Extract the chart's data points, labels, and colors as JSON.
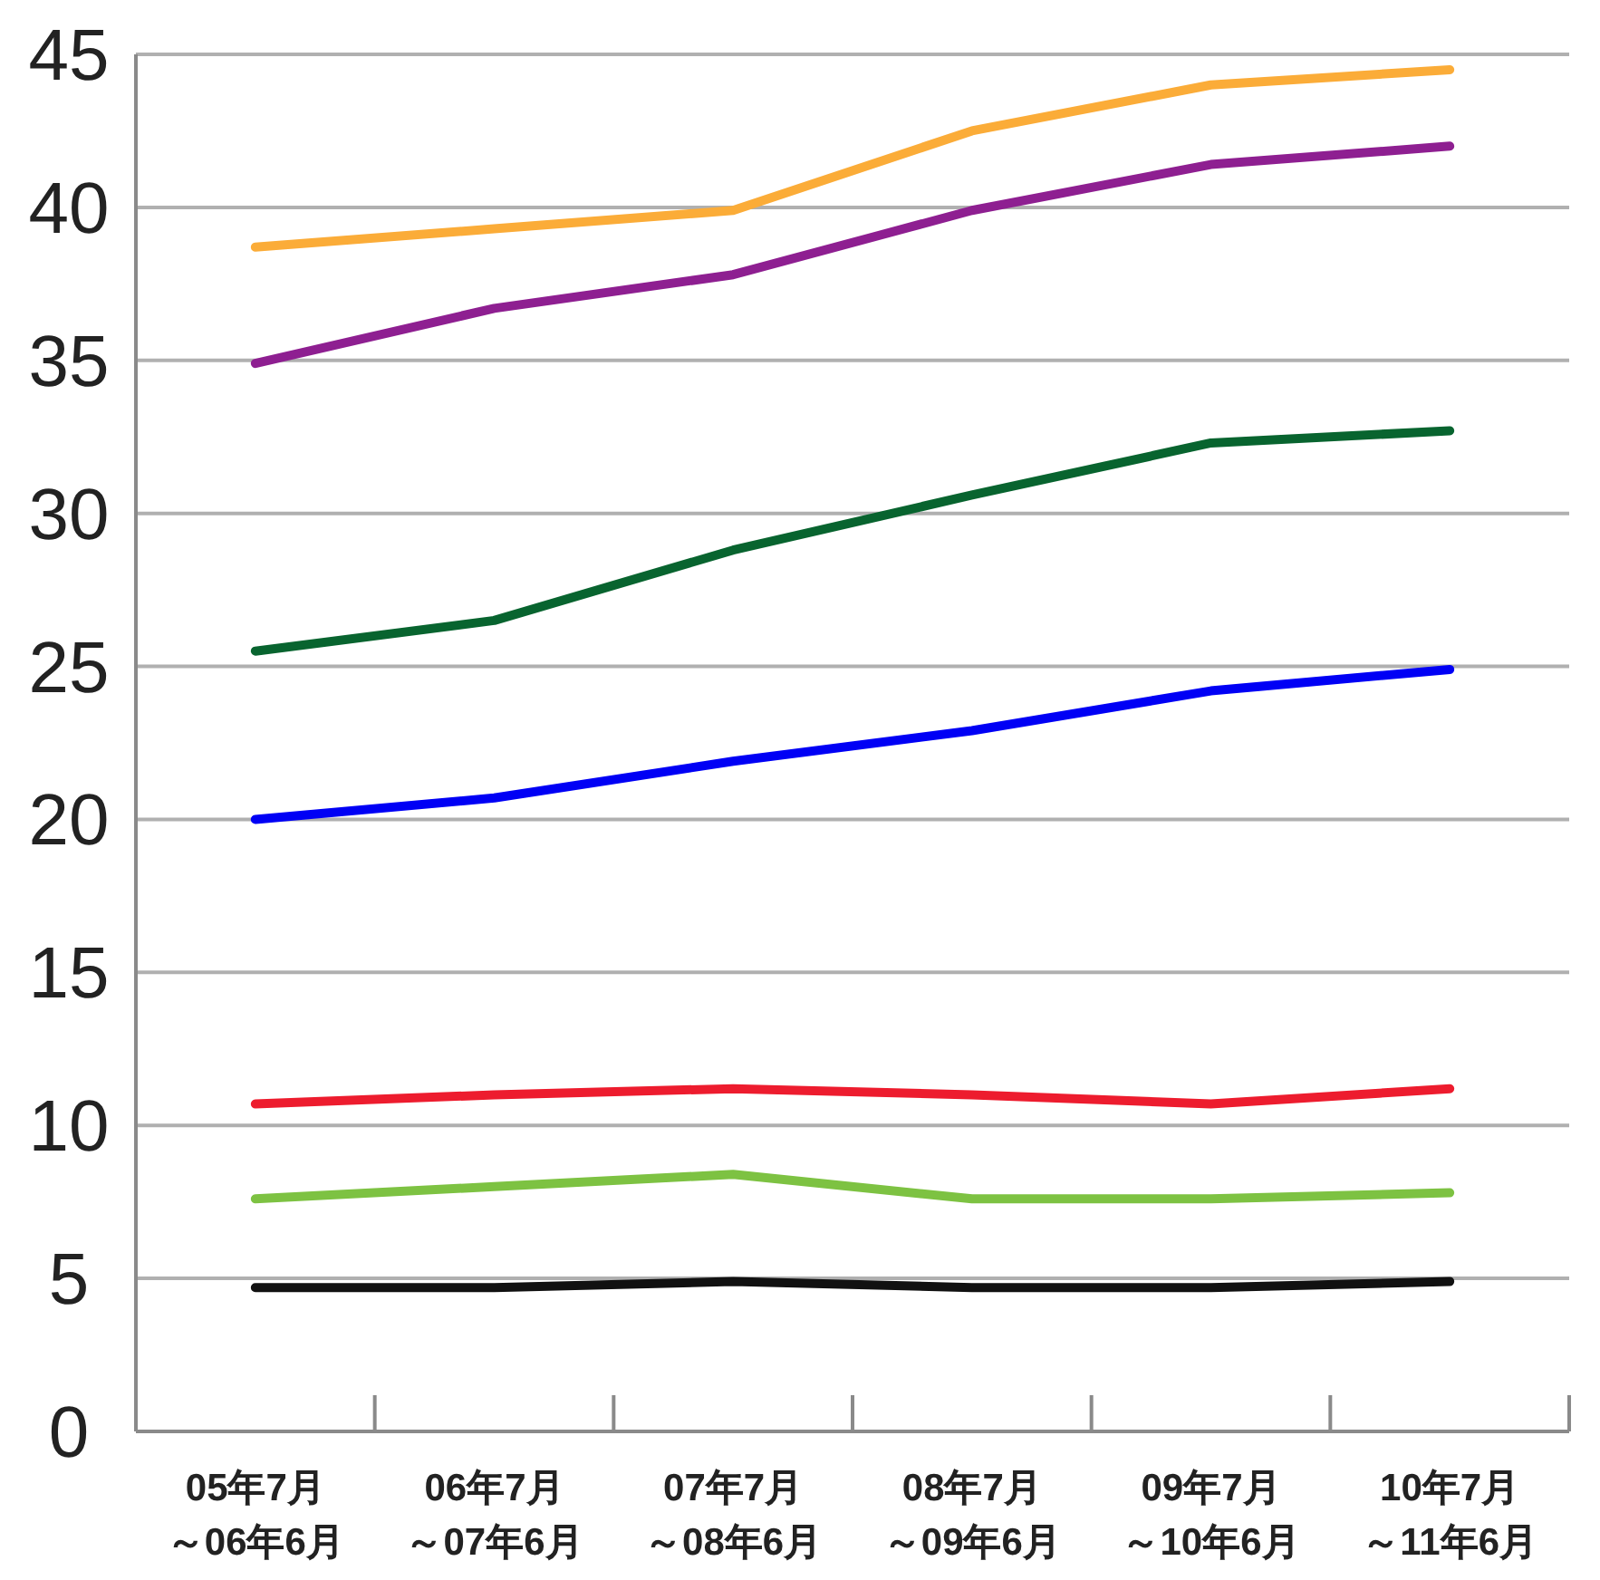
{
  "chart_data": {
    "type": "line",
    "categories": [
      "05年7月～06年6月",
      "06年7月～07年6月",
      "07年7月～08年6月",
      "08年7月～09年6月",
      "09年7月～10年6月",
      "10年7月～11年6月"
    ],
    "series": [
      {
        "color": "#fbac38",
        "values": [
          38.7,
          39.3,
          39.9,
          42.5,
          44.0,
          44.5
        ]
      },
      {
        "color": "#8e1f91",
        "values": [
          34.9,
          36.7,
          37.8,
          39.9,
          41.4,
          42.0
        ]
      },
      {
        "color": "#08642f",
        "values": [
          25.5,
          26.5,
          28.8,
          30.6,
          32.3,
          32.7
        ]
      },
      {
        "color": "#0000f5",
        "values": [
          20.0,
          20.7,
          21.9,
          22.9,
          24.2,
          24.9
        ]
      },
      {
        "color": "#ed1c2e",
        "values": [
          10.7,
          11.0,
          11.2,
          11.0,
          10.7,
          11.2
        ]
      },
      {
        "color": "#7dc242",
        "values": [
          7.6,
          8.0,
          8.4,
          7.6,
          7.6,
          7.8
        ]
      },
      {
        "color": "#111111",
        "values": [
          4.7,
          4.7,
          4.9,
          4.7,
          4.7,
          4.9
        ]
      }
    ],
    "ylim": [
      0,
      45
    ],
    "yticks": [
      0,
      5,
      10,
      15,
      20,
      25,
      30,
      35,
      40,
      45
    ],
    "grid": "y",
    "marker": "none",
    "line_style": "solid"
  }
}
